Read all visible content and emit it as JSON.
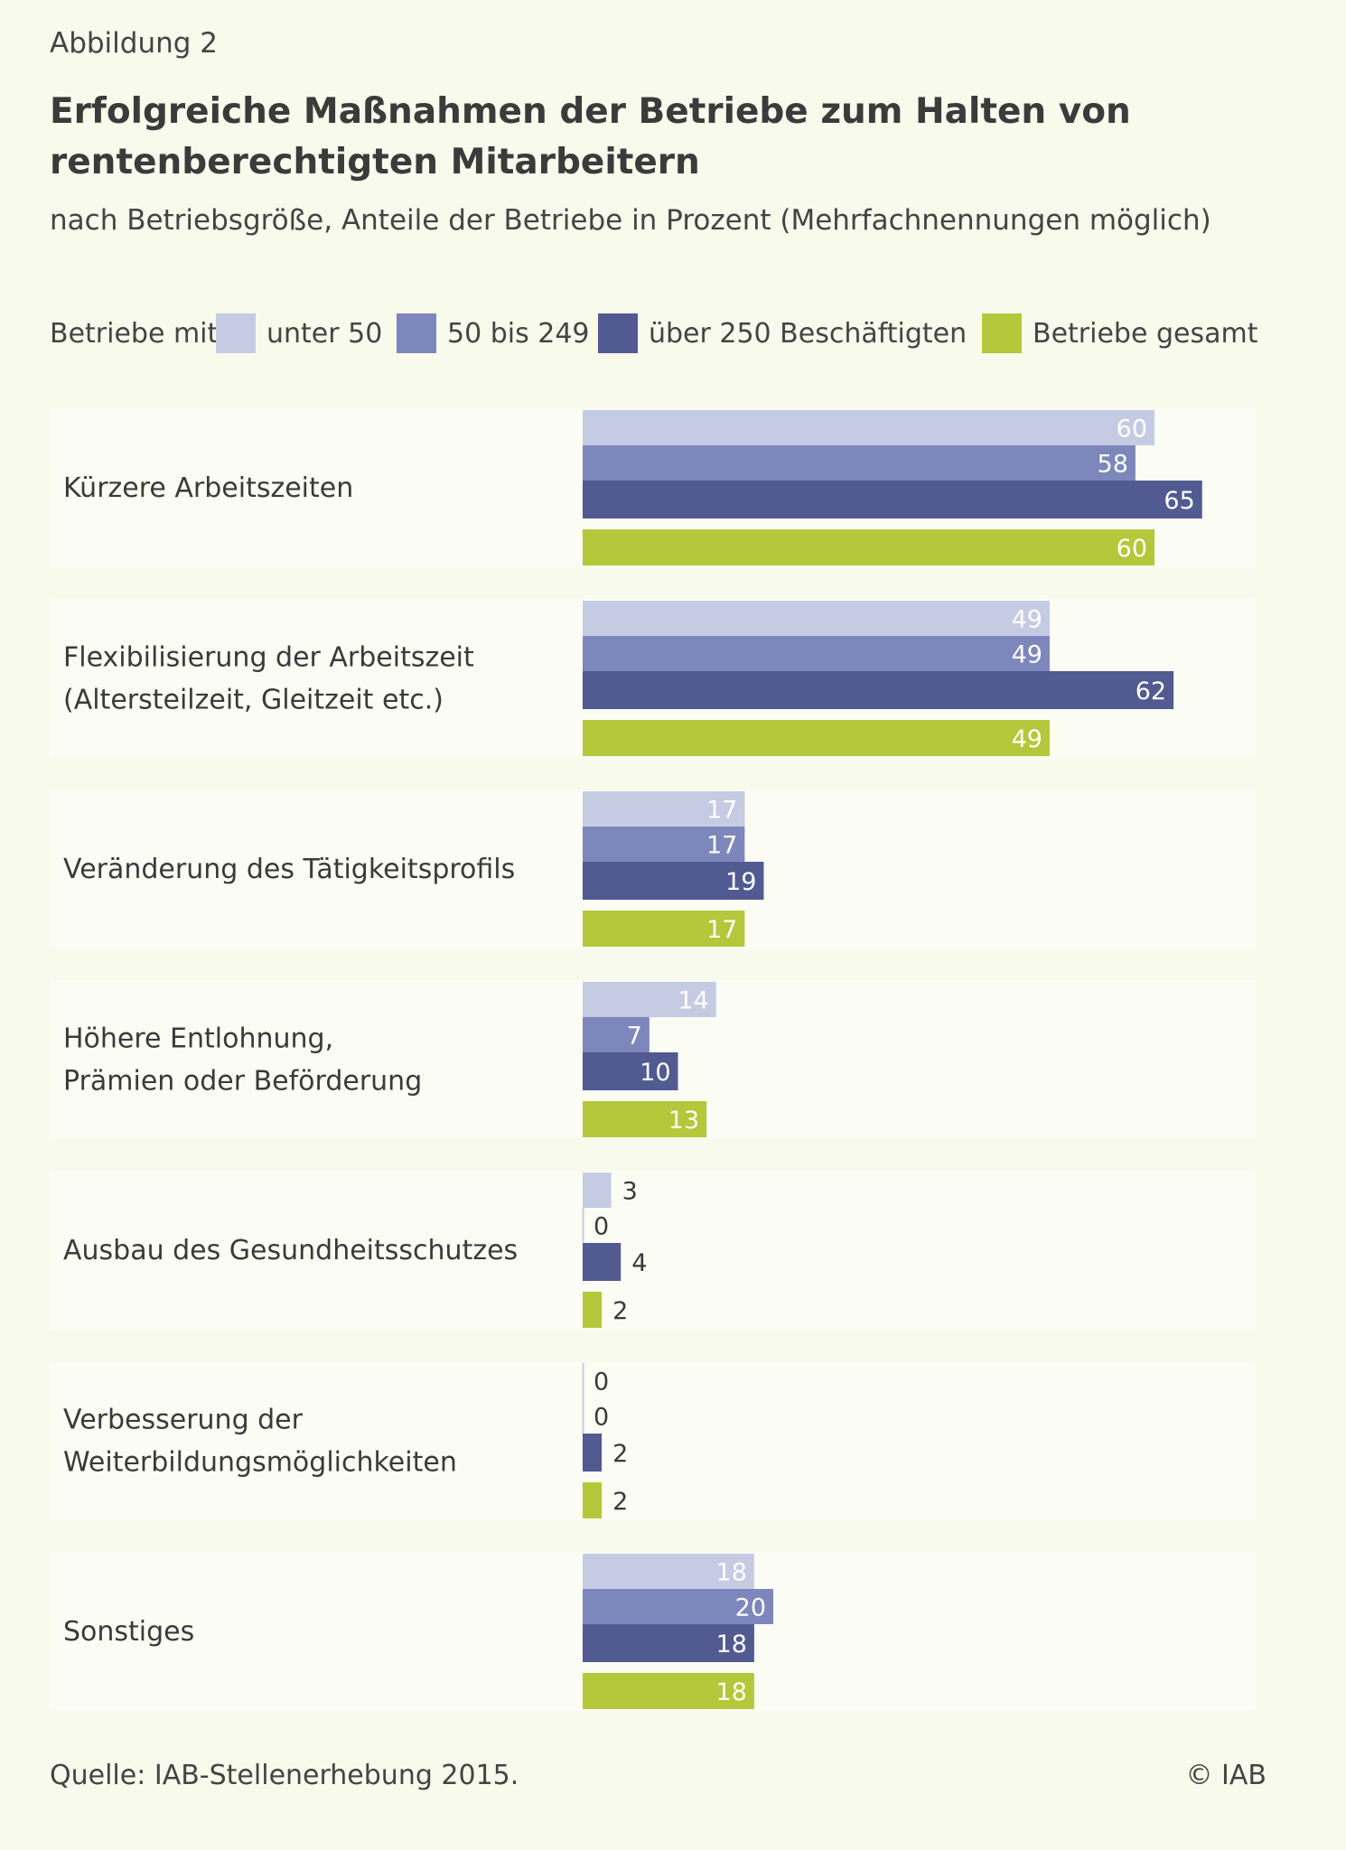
{
  "figure_label": "Abbildung 2",
  "title": "Erfolgreiche Maßnahmen der Betriebe zum Halten von rentenberechtigten Mitarbeitern",
  "subtitle": "nach Betriebsgröße, Anteile der Betriebe in Prozent (Mehrfachnennungen möglich)",
  "legend": {
    "prefix": "Betriebe mit",
    "items": [
      {
        "label": "unter 50",
        "color": "#c6cbe4"
      },
      {
        "label": "50 bis 249",
        "color": "#7d87bb"
      },
      {
        "label": "über 250 Beschäftigten",
        "color": "#515a91"
      },
      {
        "label": "Betriebe gesamt",
        "color": "#b3c83a"
      }
    ]
  },
  "chart_data": {
    "type": "bar",
    "orientation": "horizontal",
    "categories": [
      [
        "Kürzere Arbeitszeiten"
      ],
      [
        "Flexibilisierung der Arbeitszeit",
        "(Altersteilzeit, Gleitzeit etc.)"
      ],
      [
        "Veränderung des Tätigkeitsprofils"
      ],
      [
        "Höhere Entlohnung,",
        "Prämien oder Beförderung"
      ],
      [
        "Ausbau des Gesundheitsschutzes"
      ],
      [
        "Verbesserung der",
        "Weiterbildungsmöglichkeiten"
      ],
      [
        "Sonstiges"
      ]
    ],
    "series": [
      {
        "name": "unter 50",
        "color": "#c6cbe4",
        "values": [
          60,
          49,
          17,
          14,
          3,
          0,
          18
        ]
      },
      {
        "name": "50 bis 249",
        "color": "#7d87bb",
        "values": [
          58,
          49,
          17,
          7,
          0,
          0,
          20
        ]
      },
      {
        "name": "über 250 Beschäftigten",
        "color": "#515a91",
        "values": [
          65,
          62,
          19,
          10,
          4,
          2,
          18
        ]
      },
      {
        "name": "Betriebe gesamt",
        "color": "#b3c83a",
        "values": [
          60,
          49,
          17,
          13,
          2,
          2,
          18
        ]
      }
    ],
    "xlim": [
      0,
      100
    ],
    "grid": false,
    "legend_position": "top"
  },
  "footer": {
    "source": "Quelle: IAB-Stellenerhebung 2015.",
    "copyright": "© IAB"
  }
}
